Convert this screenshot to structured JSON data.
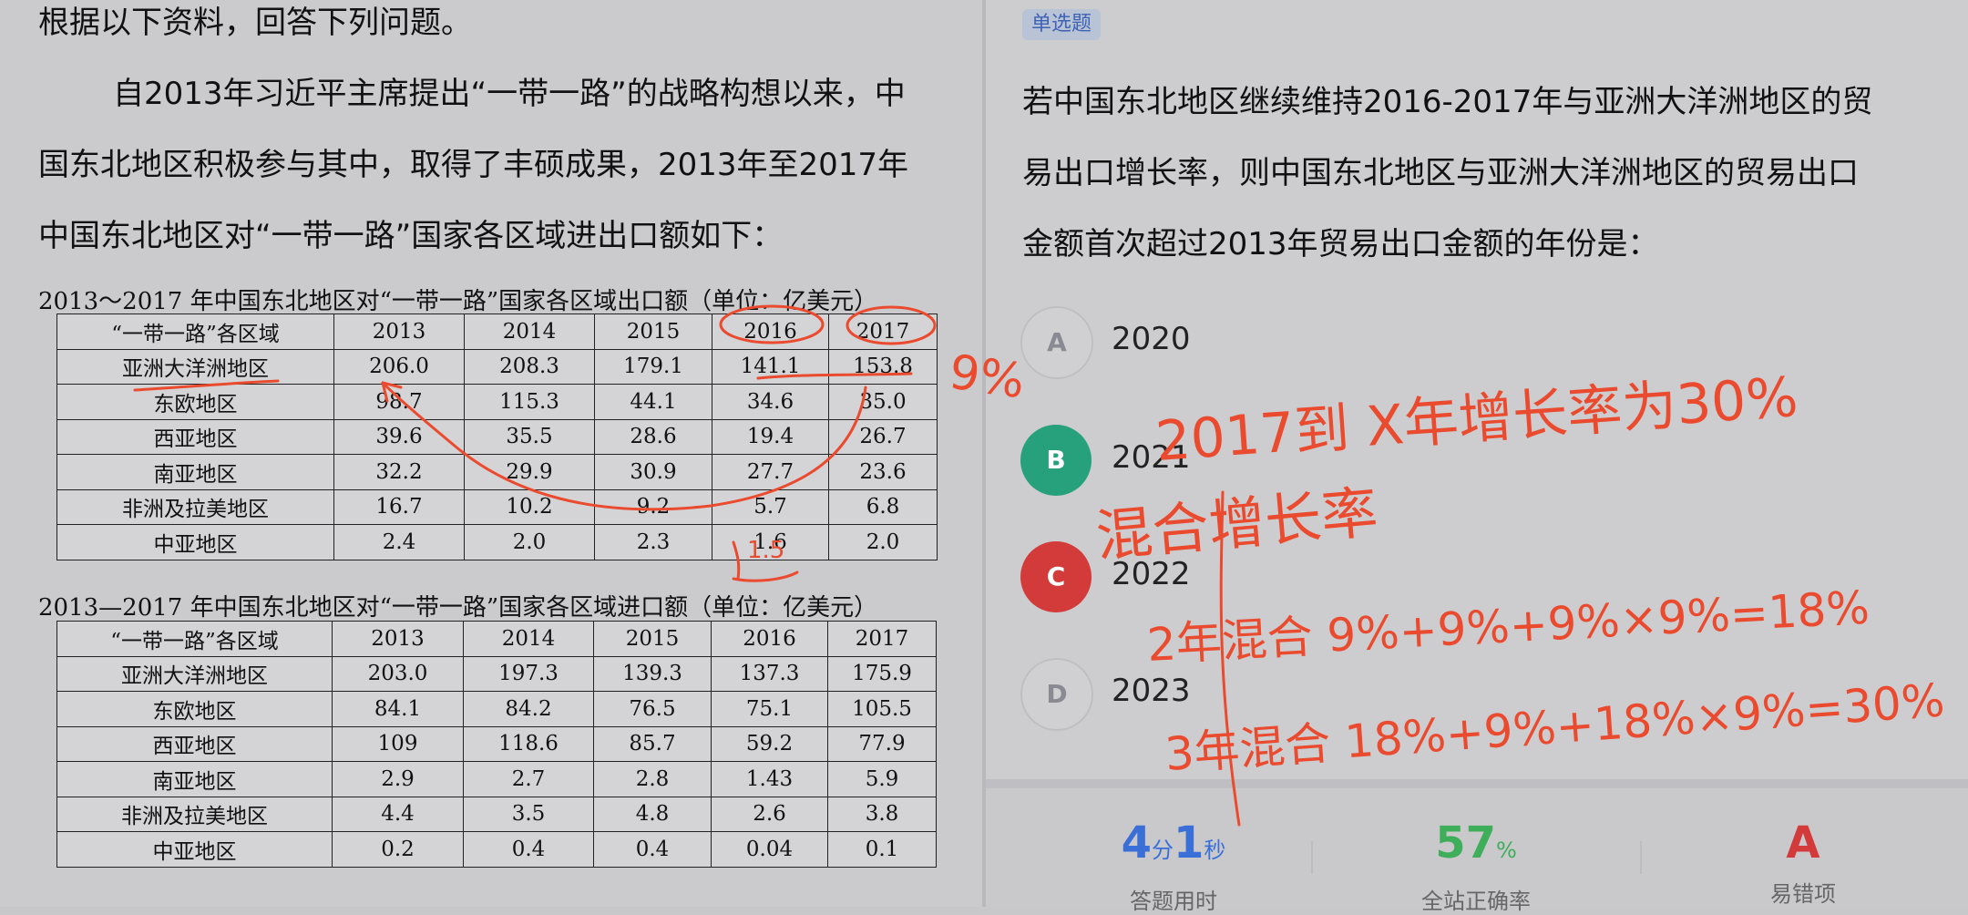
{
  "material": {
    "intro": "根据以下资料，回答下列问题。",
    "paragraph": [
      "自2013年习近平主席提出“一带一路”的战略构想以来，中",
      "国东北地区积极参与其中，取得了丰硕成果，2013年至2017年",
      "中国东北地区对“一带一路”国家各区域进出口额如下："
    ],
    "export_table": {
      "caption": "2013～2017 年中国东北地区对“一带一路”国家各区域出口额（单位：亿美元）",
      "headers": [
        "“一带一路”各区域",
        "2013",
        "2014",
        "2015",
        "2016",
        "2017"
      ],
      "rows": [
        [
          "亚洲大洋洲地区",
          "206.0",
          "208.3",
          "179.1",
          "141.1",
          "153.8"
        ],
        [
          "东欧地区",
          "98.7",
          "115.3",
          "44.1",
          "34.6",
          "35.0"
        ],
        [
          "西亚地区",
          "39.6",
          "35.5",
          "28.6",
          "19.4",
          "26.7"
        ],
        [
          "南亚地区",
          "32.2",
          "29.9",
          "30.9",
          "27.7",
          "23.6"
        ],
        [
          "非洲及拉美地区",
          "16.7",
          "10.2",
          "9.2",
          "5.7",
          "6.8"
        ],
        [
          "中亚地区",
          "2.4",
          "2.0",
          "2.3",
          "1.6",
          "2.0"
        ]
      ]
    },
    "import_table": {
      "caption": "2013—2017 年中国东北地区对“一带一路”国家各区域进口额（单位：亿美元）",
      "headers": [
        "“一带一路”各区域",
        "2013",
        "2014",
        "2015",
        "2016",
        "2017"
      ],
      "rows": [
        [
          "亚洲大洋洲地区",
          "203.0",
          "197.3",
          "139.3",
          "137.3",
          "175.9"
        ],
        [
          "东欧地区",
          "84.1",
          "84.2",
          "76.5",
          "75.1",
          "105.5"
        ],
        [
          "西亚地区",
          "109",
          "118.6",
          "85.7",
          "59.2",
          "77.9"
        ],
        [
          "南亚地区",
          "2.9",
          "2.7",
          "2.8",
          "1.43",
          "5.9"
        ],
        [
          "非洲及拉美地区",
          "4.4",
          "3.5",
          "4.8",
          "2.6",
          "3.8"
        ],
        [
          "中亚地区",
          "0.2",
          "0.4",
          "0.4",
          "0.04",
          "0.1"
        ]
      ]
    }
  },
  "question": {
    "type_tag": "单选题",
    "lines": [
      "若中国东北地区继续维持2016-2017年与亚洲大洋洲地区的贸",
      "易出口增长率，则中国东北地区与亚洲大洋洲地区的贸易出口",
      "金额首次超过2013年贸易出口金额的年份是："
    ],
    "options": [
      {
        "letter": "A",
        "text": "2020",
        "state": "plain"
      },
      {
        "letter": "B",
        "text": "2021",
        "state": "correct"
      },
      {
        "letter": "C",
        "text": "2022",
        "state": "wrong"
      },
      {
        "letter": "D",
        "text": "2023",
        "state": "plain"
      }
    ]
  },
  "stats": {
    "time_min": "4",
    "time_min_unit": "分",
    "time_sec": "1",
    "time_sec_unit": "秒",
    "time_label": "答题用时",
    "accuracy": "57",
    "accuracy_unit": "%",
    "accuracy_label": "全站正确率",
    "common_wrong": "A",
    "common_wrong_label": "易错项"
  },
  "handwriting": {
    "note_rate": "9%",
    "note_line1": "2017到 X年增长率为30%",
    "note_line2": "混合增长率",
    "note_line3": "2年混合 9%+9%+9%×9%=18%",
    "note_line4": "3年混合 18%+9%+18%×9%=30%",
    "note_cell": "1.5"
  },
  "colors": {
    "ink": "#ea4a2e",
    "correct": "#27a17c",
    "wrong": "#d33b3b",
    "accent_blue": "#3a6fd8",
    "accent_green": "#3fae5a",
    "accent_red": "#d33b3b"
  }
}
